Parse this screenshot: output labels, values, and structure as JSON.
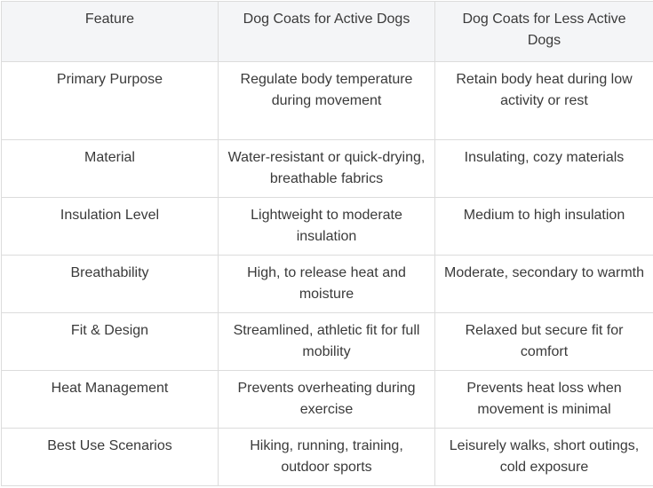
{
  "headers": [
    "Feature",
    "Dog Coats for Active Dogs",
    "Dog Coats for Less Active Dogs"
  ],
  "rows": [
    [
      "Primary Purpose",
      "Regulate body temperature during movement",
      "Retain body heat during low activity or rest"
    ],
    [
      "Material",
      "Water-resistant or quick-drying, breathable fabrics",
      "Insulating, cozy materials"
    ],
    [
      "Insulation Level",
      "Lightweight to moderate insulation",
      "Medium to high insulation"
    ],
    [
      "Breathability",
      "High, to release heat and moisture",
      "Moderate, secondary to warmth"
    ],
    [
      "Fit & Design",
      "Streamlined, athletic fit for full mobility",
      "Relaxed but secure fit for comfort"
    ],
    [
      "Heat Management",
      "Prevents overheating during exercise",
      "Prevents heat loss when movement is minimal"
    ],
    [
      "Best Use Scenarios",
      "Hiking, running, training, outdoor sports",
      "Leisurely walks, short outings, cold exposure"
    ]
  ]
}
